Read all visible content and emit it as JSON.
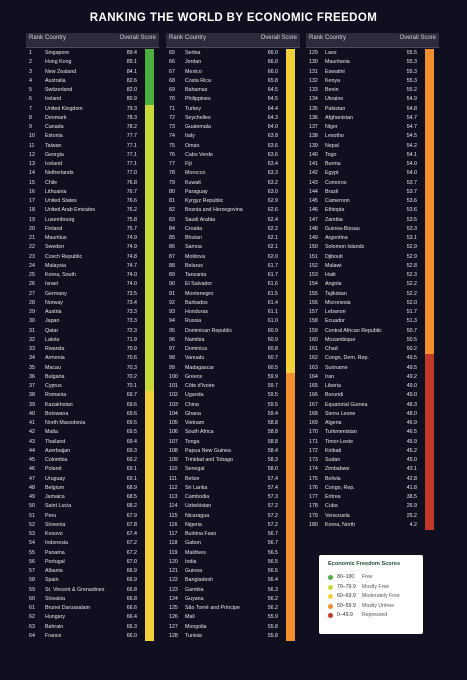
{
  "title": "RANKING THE WORLD BY ECONOMIC FREEDOM",
  "headers": {
    "rank": "Rank",
    "country": "Country",
    "score": "Overall Score"
  },
  "legend": {
    "title": "Economic Freedom Scores",
    "items": [
      {
        "range": "80–100",
        "label": "Free",
        "color": "#4caf3f"
      },
      {
        "range": "70–79.9",
        "label": "Mostly Free",
        "color": "#c9d93a"
      },
      {
        "range": "60–69.9",
        "label": "Moderately Free",
        "color": "#f2d13a"
      },
      {
        "range": "50–59.9",
        "label": "Mostly Unfree",
        "color": "#f0902f"
      },
      {
        "range": "0–49.9",
        "label": "Repressed",
        "color": "#c0392b"
      }
    ]
  },
  "chart_data": {
    "type": "table",
    "title": "RANKING THE WORLD BY ECONOMIC FREEDOM",
    "columns": [
      "Rank",
      "Country",
      "Overall Score"
    ],
    "rows": [
      [
        1,
        "Singapore",
        "89.4"
      ],
      [
        2,
        "Hong Kong",
        "89.1"
      ],
      [
        3,
        "New Zealand",
        "84.1"
      ],
      [
        4,
        "Australia",
        "82.6"
      ],
      [
        5,
        "Switzerland",
        "82.0"
      ],
      [
        6,
        "Ireland",
        "80.9"
      ],
      [
        7,
        "United Kingdom",
        "79.3"
      ],
      [
        8,
        "Denmark",
        "78.3"
      ],
      [
        9,
        "Canada",
        "78.2"
      ],
      [
        10,
        "Estonia",
        "77.7"
      ],
      [
        11,
        "Taiwan",
        "77.1"
      ],
      [
        12,
        "Georgia",
        "77.1"
      ],
      [
        13,
        "Iceland",
        "77.1"
      ],
      [
        14,
        "Netherlands",
        "77.0"
      ],
      [
        15,
        "Chile",
        "76.8"
      ],
      [
        16,
        "Lithuania",
        "76.7"
      ],
      [
        17,
        "United States",
        "76.6"
      ],
      [
        18,
        "United Arab Emirates",
        "76.2"
      ],
      [
        19,
        "Luxembourg",
        "75.8"
      ],
      [
        20,
        "Finland",
        "75.7"
      ],
      [
        21,
        "Mauritius",
        "74.9"
      ],
      [
        22,
        "Sweden",
        "74.9"
      ],
      [
        23,
        "Czech Republic",
        "74.8"
      ],
      [
        24,
        "Malaysia",
        "74.7"
      ],
      [
        25,
        "Korea, South",
        "74.0"
      ],
      [
        26,
        "Israel",
        "74.0"
      ],
      [
        27,
        "Germany",
        "73.5"
      ],
      [
        28,
        "Norway",
        "73.4"
      ],
      [
        29,
        "Austria",
        "73.3"
      ],
      [
        30,
        "Japan",
        "73.3"
      ],
      [
        31,
        "Qatar",
        "72.3"
      ],
      [
        32,
        "Latvia",
        "71.9"
      ],
      [
        33,
        "Rwanda",
        "70.9"
      ],
      [
        34,
        "Armenia",
        "70.6"
      ],
      [
        35,
        "Macau",
        "70.3"
      ],
      [
        36,
        "Bulgaria",
        "70.2"
      ],
      [
        37,
        "Cyprus",
        "70.1"
      ],
      [
        38,
        "Romania",
        "69.7"
      ],
      [
        39,
        "Kazakhstan",
        "69.6"
      ],
      [
        40,
        "Botswana",
        "69.6"
      ],
      [
        41,
        "North Macedonia",
        "69.5"
      ],
      [
        42,
        "Malta",
        "69.5"
      ],
      [
        43,
        "Thailand",
        "69.4"
      ],
      [
        44,
        "Azerbaijan",
        "69.3"
      ],
      [
        45,
        "Colombia",
        "69.2"
      ],
      [
        46,
        "Poland",
        "69.1"
      ],
      [
        47,
        "Uruguay",
        "69.1"
      ],
      [
        48,
        "Belgium",
        "68.9"
      ],
      [
        49,
        "Jamaica",
        "68.5"
      ],
      [
        50,
        "Saint Lucia",
        "68.2"
      ],
      [
        51,
        "Peru",
        "67.9"
      ],
      [
        52,
        "Slovenia",
        "67.8"
      ],
      [
        53,
        "Kosovo",
        "67.4"
      ],
      [
        54,
        "Indonesia",
        "67.2"
      ],
      [
        55,
        "Panama",
        "67.2"
      ],
      [
        56,
        "Portugal",
        "67.0"
      ],
      [
        57,
        "Albania",
        "66.9"
      ],
      [
        58,
        "Spain",
        "66.9"
      ],
      [
        59,
        "St. Vincent & Grenadines",
        "66.8"
      ],
      [
        60,
        "Slovakia",
        "66.8"
      ],
      [
        61,
        "Brunei Darussalam",
        "66.6"
      ],
      [
        62,
        "Hungary",
        "66.4"
      ],
      [
        63,
        "Bahrain",
        "66.3"
      ],
      [
        64,
        "France",
        "66.0"
      ],
      [
        65,
        "Serbia",
        "66.0"
      ],
      [
        66,
        "Jordan",
        "66.0"
      ],
      [
        67,
        "Mexico",
        "66.0"
      ],
      [
        68,
        "Costa Rica",
        "65.8"
      ],
      [
        69,
        "Bahamas",
        "64.5"
      ],
      [
        70,
        "Philippines",
        "64.5"
      ],
      [
        71,
        "Turkey",
        "64.4"
      ],
      [
        72,
        "Seychelles",
        "64.3"
      ],
      [
        73,
        "Guatemala",
        "64.0"
      ],
      [
        74,
        "Italy",
        "63.8"
      ],
      [
        75,
        "Oman",
        "63.6"
      ],
      [
        76,
        "Cabo Verde",
        "63.6"
      ],
      [
        77,
        "Fiji",
        "63.4"
      ],
      [
        78,
        "Morocco",
        "63.3"
      ],
      [
        79,
        "Kuwait",
        "63.2"
      ],
      [
        80,
        "Paraguay",
        "63.0"
      ],
      [
        81,
        "Kyrgyz Republic",
        "62.9"
      ],
      [
        82,
        "Bosnia and Herzegovina",
        "62.6"
      ],
      [
        83,
        "Saudi Arabia",
        "62.4"
      ],
      [
        84,
        "Croatia",
        "62.2"
      ],
      [
        85,
        "Bhutan",
        "62.1"
      ],
      [
        86,
        "Samoa",
        "62.1"
      ],
      [
        87,
        "Moldova",
        "62.0"
      ],
      [
        88,
        "Belarus",
        "61.7"
      ],
      [
        89,
        "Tanzania",
        "61.7"
      ],
      [
        90,
        "El Salvador",
        "61.6"
      ],
      [
        91,
        "Montenegro",
        "61.5"
      ],
      [
        92,
        "Barbados",
        "61.4"
      ],
      [
        93,
        "Honduras",
        "61.1"
      ],
      [
        94,
        "Russia",
        "61.0"
      ],
      [
        95,
        "Dominican Republic",
        "60.9"
      ],
      [
        96,
        "Namibia",
        "60.9"
      ],
      [
        97,
        "Dominica",
        "60.8"
      ],
      [
        98,
        "Vanuatu",
        "60.7"
      ],
      [
        99,
        "Madagascar",
        "60.5"
      ],
      [
        100,
        "Greece",
        "59.9"
      ],
      [
        101,
        "Côte d'Ivoire",
        "59.7"
      ],
      [
        102,
        "Uganda",
        "59.5"
      ],
      [
        103,
        "China",
        "59.5"
      ],
      [
        104,
        "Ghana",
        "59.4"
      ],
      [
        105,
        "Vietnam",
        "58.8"
      ],
      [
        106,
        "South Africa",
        "58.8"
      ],
      [
        107,
        "Tonga",
        "58.8"
      ],
      [
        108,
        "Papua New Guinea",
        "58.4"
      ],
      [
        109,
        "Trinidad and Tobago",
        "58.3"
      ],
      [
        110,
        "Senegal",
        "58.0"
      ],
      [
        111,
        "Belize",
        "57.4"
      ],
      [
        112,
        "Sri Lanka",
        "57.4"
      ],
      [
        113,
        "Cambodia",
        "57.3"
      ],
      [
        114,
        "Uzbekistan",
        "57.2"
      ],
      [
        115,
        "Nicaragua",
        "57.2"
      ],
      [
        116,
        "Nigeria",
        "57.2"
      ],
      [
        117,
        "Burkina Faso",
        "56.7"
      ],
      [
        118,
        "Gabon",
        "56.7"
      ],
      [
        119,
        "Maldives",
        "56.5"
      ],
      [
        120,
        "India",
        "56.5"
      ],
      [
        121,
        "Guinea",
        "56.5"
      ],
      [
        122,
        "Bangladesh",
        "56.4"
      ],
      [
        123,
        "Gambia",
        "56.3"
      ],
      [
        124,
        "Guyana",
        "56.2"
      ],
      [
        125,
        "São Tomé and Príncipe",
        "56.2"
      ],
      [
        126,
        "Mali",
        "55.9"
      ],
      [
        127,
        "Mongolia",
        "55.8"
      ],
      [
        128,
        "Tunisia",
        "55.8"
      ],
      [
        129,
        "Laos",
        "55.5"
      ],
      [
        130,
        "Mauritania",
        "55.3"
      ],
      [
        131,
        "Eswatini",
        "55.3"
      ],
      [
        132,
        "Kenya",
        "55.3"
      ],
      [
        133,
        "Benin",
        "55.2"
      ],
      [
        134,
        "Ukraine",
        "54.9"
      ],
      [
        135,
        "Pakistan",
        "54.8"
      ],
      [
        136,
        "Afghanistan",
        "54.7"
      ],
      [
        137,
        "Niger",
        "54.7"
      ],
      [
        138,
        "Lesotho",
        "54.5"
      ],
      [
        139,
        "Nepal",
        "54.2"
      ],
      [
        140,
        "Togo",
        "54.1"
      ],
      [
        141,
        "Burma",
        "54.0"
      ],
      [
        142,
        "Egypt",
        "54.0"
      ],
      [
        143,
        "Comoros",
        "53.7"
      ],
      [
        144,
        "Brazil",
        "53.7"
      ],
      [
        145,
        "Cameroon",
        "53.6"
      ],
      [
        146,
        "Ethiopia",
        "53.6"
      ],
      [
        147,
        "Zambia",
        "53.5"
      ],
      [
        148,
        "Guinea-Bissau",
        "53.3"
      ],
      [
        149,
        "Argentina",
        "53.1"
      ],
      [
        150,
        "Solomon Islands",
        "52.9"
      ],
      [
        151,
        "Djibouti",
        "52.9"
      ],
      [
        152,
        "Malawi",
        "52.8"
      ],
      [
        153,
        "Haiti",
        "52.3"
      ],
      [
        154,
        "Angola",
        "52.2"
      ],
      [
        155,
        "Tajikistan",
        "52.2"
      ],
      [
        156,
        "Micronesia",
        "52.0"
      ],
      [
        157,
        "Lebanon",
        "51.7"
      ],
      [
        158,
        "Ecuador",
        "51.3"
      ],
      [
        159,
        "Central African Republic",
        "50.7"
      ],
      [
        160,
        "Mozambique",
        "50.5"
      ],
      [
        161,
        "Chad",
        "50.2"
      ],
      [
        162,
        "Congo, Dem. Rep.",
        "49.5"
      ],
      [
        163,
        "Suriname",
        "49.5"
      ],
      [
        164,
        "Iran",
        "49.2"
      ],
      [
        165,
        "Liberia",
        "49.0"
      ],
      [
        166,
        "Burundi",
        "49.0"
      ],
      [
        167,
        "Equatorial Guinea",
        "48.3"
      ],
      [
        168,
        "Sierra Leone",
        "48.0"
      ],
      [
        169,
        "Algeria",
        "46.9"
      ],
      [
        170,
        "Turkmenistan",
        "46.5"
      ],
      [
        171,
        "Timor-Leste",
        "45.9"
      ],
      [
        172,
        "Kiribati",
        "45.2"
      ],
      [
        173,
        "Sudan",
        "45.0"
      ],
      [
        174,
        "Zimbabwe",
        "43.1"
      ],
      [
        175,
        "Bolivia",
        "42.8"
      ],
      [
        176,
        "Congo, Rep.",
        "41.8"
      ],
      [
        177,
        "Eritrea",
        "38.5"
      ],
      [
        178,
        "Cuba",
        "26.9"
      ],
      [
        179,
        "Venezuela",
        "25.2"
      ],
      [
        180,
        "Korea, North",
        "4.2"
      ]
    ]
  }
}
